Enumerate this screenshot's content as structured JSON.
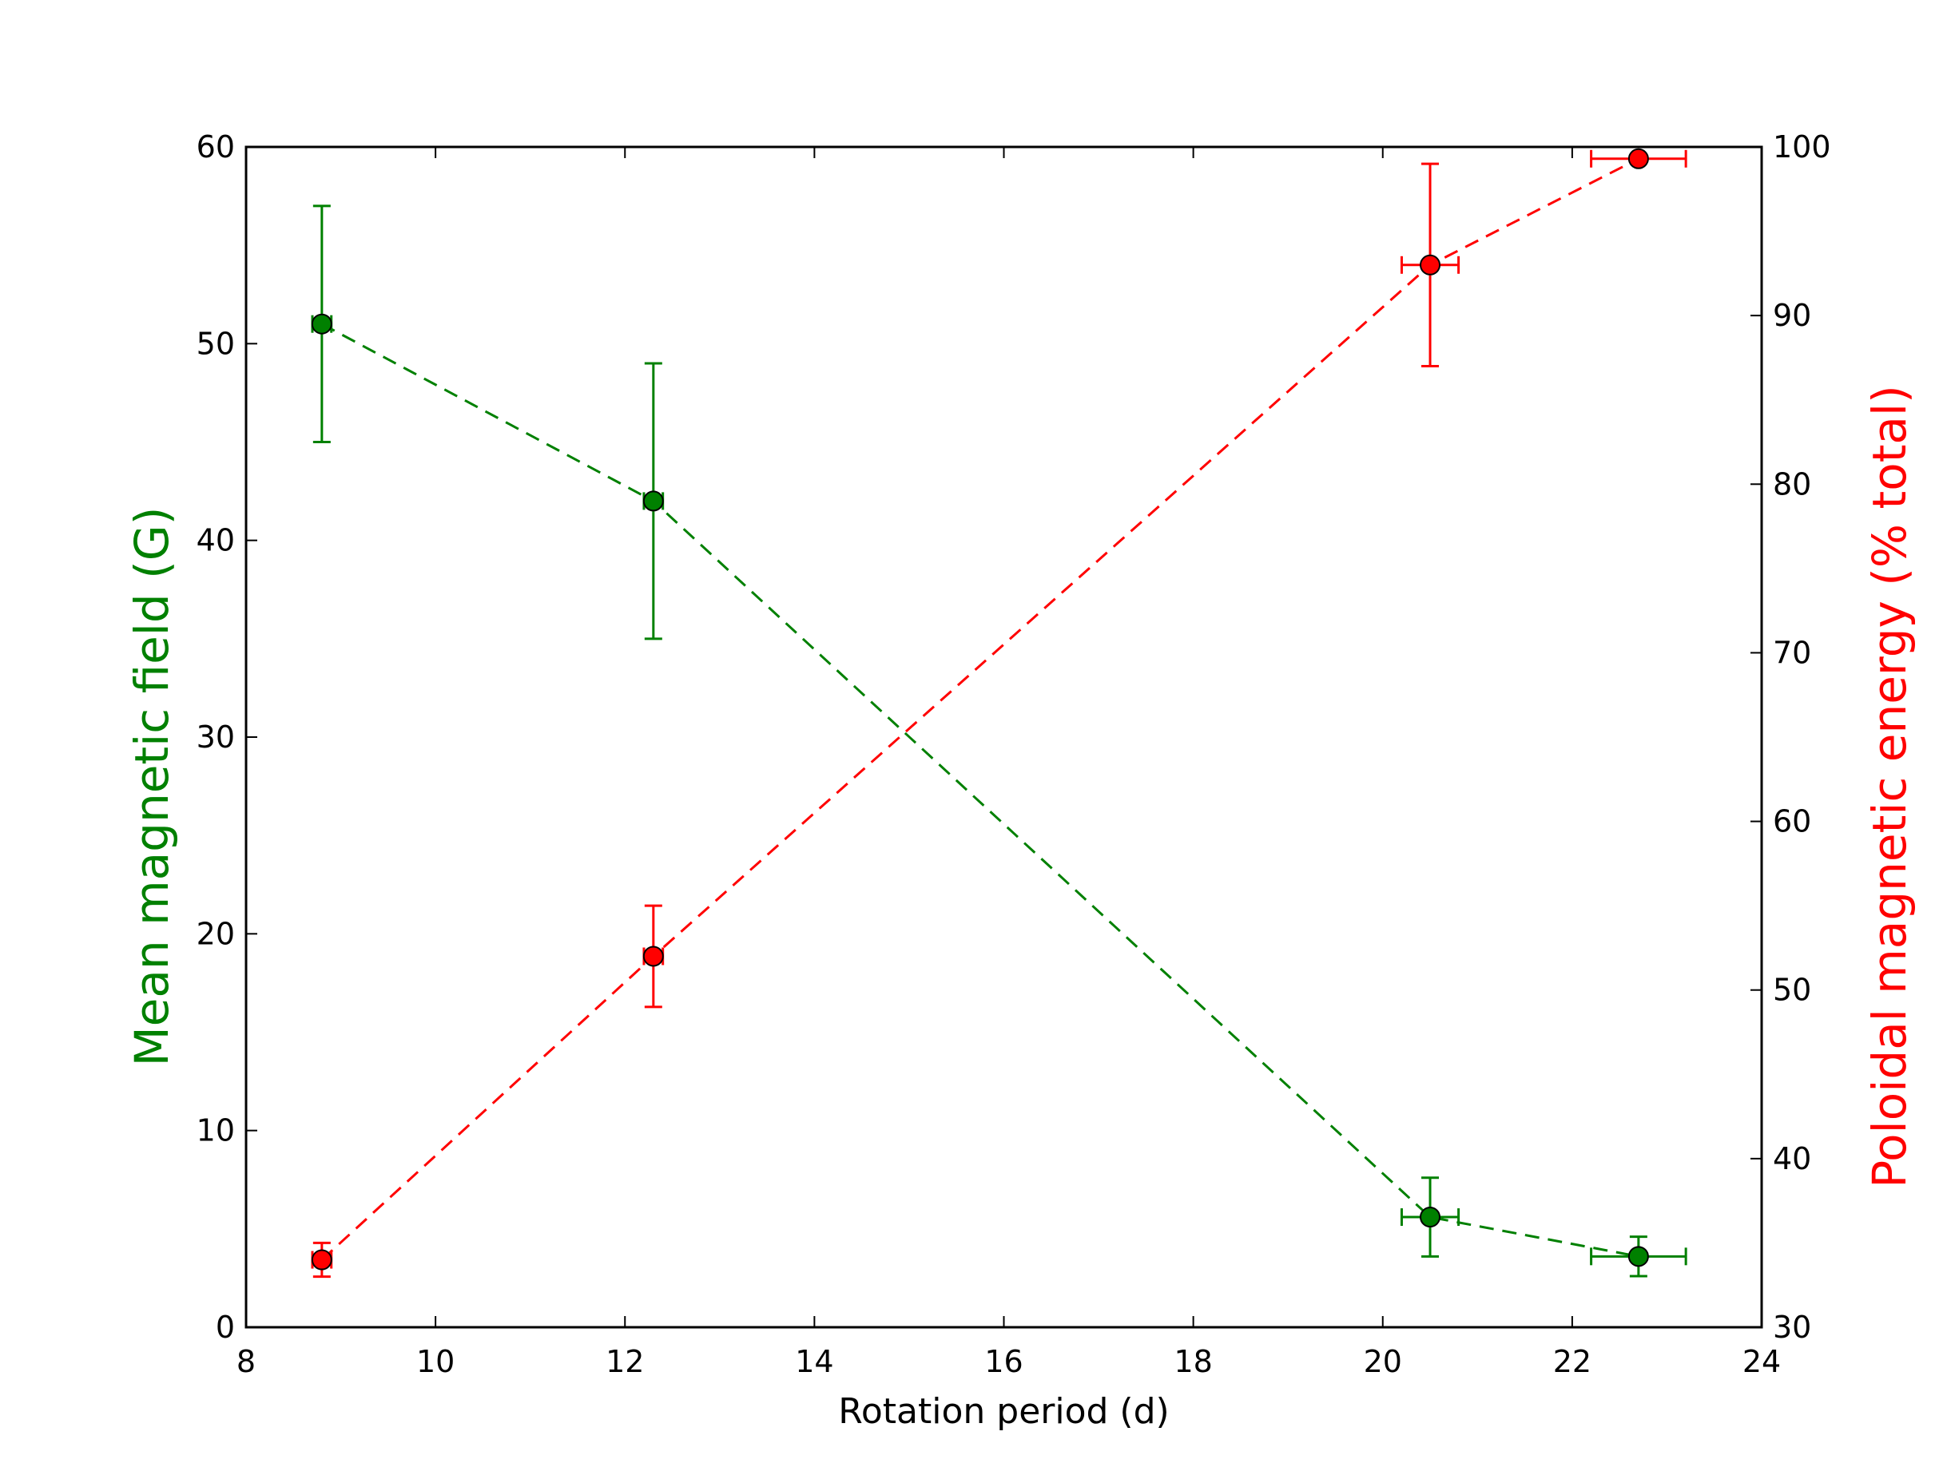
{
  "chart_data": {
    "type": "scatter",
    "xlabel": "Rotation period (d)",
    "ylabel_left": "Mean magnetic field (G)",
    "ylabel_right": "Poloidal magnetic energy (% total)",
    "xlim": [
      8,
      24
    ],
    "ylim_left": [
      0,
      60
    ],
    "ylim_right": [
      30,
      100
    ],
    "x_ticks": [
      "8",
      "10",
      "12",
      "14",
      "16",
      "18",
      "20",
      "22",
      "24"
    ],
    "y_left_ticks": [
      "0",
      "10",
      "20",
      "30",
      "40",
      "50",
      "60"
    ],
    "y_right_ticks": [
      "30",
      "40",
      "50",
      "60",
      "70",
      "80",
      "90",
      "100"
    ],
    "grid": false,
    "series": [
      {
        "axis": "left",
        "color": "#008000",
        "line_style": "dashed",
        "x": [
          8.8,
          12.3,
          20.5,
          22.7
        ],
        "y": [
          51,
          42,
          5.6,
          3.6
        ],
        "yerr": [
          6,
          7,
          2,
          1
        ],
        "xerr": [
          0.1,
          0.1,
          0.3,
          0.5
        ]
      },
      {
        "axis": "right",
        "color": "#ff0000",
        "line_style": "dashed",
        "x": [
          8.8,
          12.3,
          20.5,
          22.7
        ],
        "y": [
          34,
          52,
          93,
          99.3
        ],
        "yerr": [
          1,
          3,
          6,
          0.2
        ],
        "xerr": [
          0.1,
          0.1,
          0.3,
          0.5
        ]
      }
    ]
  }
}
